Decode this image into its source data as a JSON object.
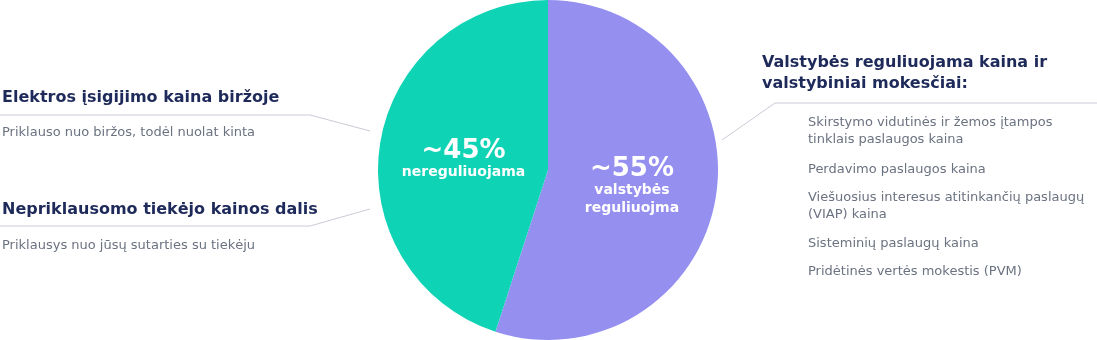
{
  "chart_data": {
    "type": "pie",
    "categories": [
      "valstybės reguliuojma",
      "nereguliuojama"
    ],
    "values": [
      55,
      45
    ],
    "value_labels": [
      "~55%",
      "~45%"
    ],
    "colors": [
      "#958ff0",
      "#0fd3b5"
    ],
    "legend": false,
    "annotations": [
      "Elektros įsigijimo kaina biržoje",
      "Priklauso nuo biržos, todėl nuolat kinta",
      "Nepriklausomo tiekėjo kainos dalis",
      "Priklausys nuo jūsų sutarties su tiekėju",
      "Valstybės reguliuojama kaina ir valstybiniai mokesčiai:",
      "Skirstymo vidutinės ir žemos įtampos tinklais paslaugos kaina",
      "Perdavimo paslaugos kaina",
      "Viešuosius interesus atitinkančių paslaugų (VIAP) kaina",
      "Sisteminių paslaugų kaina",
      "Pridėtinės vertės mokestis (PVM)"
    ]
  }
}
